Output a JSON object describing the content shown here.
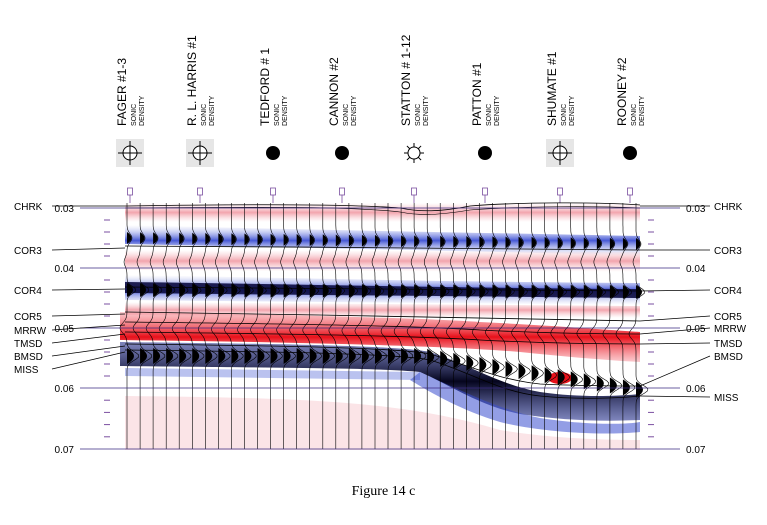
{
  "wells": [
    {
      "name": "FAGER #1-3",
      "logs": [
        "SONIC",
        "DENSITY"
      ],
      "symbol": "dry-hole"
    },
    {
      "name": "R. L. HARRIS #1",
      "logs": [
        "SONIC",
        "DENSITY"
      ],
      "symbol": "dry-hole"
    },
    {
      "name": "TEDFORD # 1",
      "logs": [
        "SONIC",
        "DENSITY"
      ],
      "symbol": "oil-well"
    },
    {
      "name": "CANNON #2",
      "logs": [
        "SONIC",
        "DENSITY"
      ],
      "symbol": "oil-well"
    },
    {
      "name": "STATTON # 1-12",
      "logs": [
        "SONIC",
        "DENSITY"
      ],
      "symbol": "gas-well"
    },
    {
      "name": "PATTON #1",
      "logs": [
        "SONIC",
        "DENSITY"
      ],
      "symbol": "oil-well"
    },
    {
      "name": "SHUMATE #1",
      "logs": [
        "SONIC",
        "DENSITY"
      ],
      "symbol": "dry-hole"
    },
    {
      "name": "ROONEY #2",
      "logs": [
        "SONIC",
        "DENSITY"
      ],
      "symbol": "oil-well"
    }
  ],
  "time_axis": {
    "ticks": [
      "0.03",
      "0.04",
      "0.05",
      "0.06",
      "0.07"
    ]
  },
  "horizons_left": [
    "CHRK",
    "COR3",
    "COR4",
    "COR5",
    "MRRW",
    "TMSD",
    "BMSD",
    "MISS"
  ],
  "horizons_right": [
    "CHRK",
    "COR3",
    "COR4",
    "COR5",
    "MRRW",
    "TMSD",
    "BMSD",
    "MISS"
  ],
  "caption": "Figure 14 c",
  "colors": {
    "positive": "#e8101a",
    "negative": "#0a0a3a",
    "blue": "#3a4fd0",
    "pink": "#f2a0a8",
    "tick": "#7a4fa0"
  }
}
